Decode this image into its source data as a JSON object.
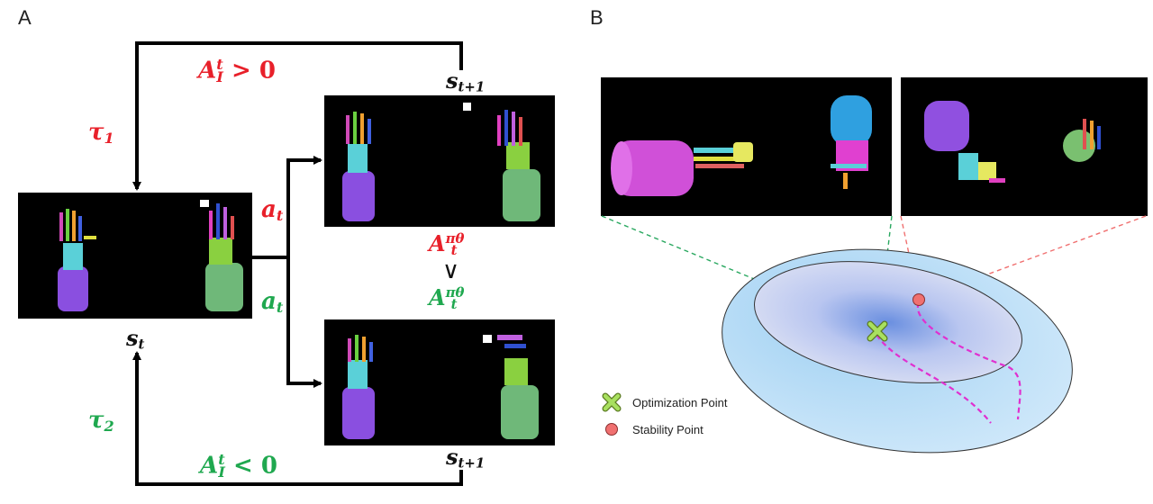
{
  "panels": {
    "a_label": "A",
    "b_label": "B"
  },
  "panel_a": {
    "state_t": {
      "base": "s",
      "sub": "t"
    },
    "state_next_top": {
      "base": "s",
      "sub": "t+1"
    },
    "state_next_bottom": {
      "base": "s",
      "sub": "t+1"
    },
    "action_top": {
      "base": "a",
      "sub": "t"
    },
    "action_bottom": {
      "base": "a",
      "sub": "t"
    },
    "traj_top": {
      "base": "τ",
      "sub": "1"
    },
    "traj_bottom": {
      "base": "τ",
      "sub": "2"
    },
    "adv_top_cond": {
      "base": "A",
      "sup": "t",
      "sub": "I",
      "rel": " > 0"
    },
    "adv_bottom_cond": {
      "base": "A",
      "sup": "t",
      "sub": "I",
      "rel": " < 0"
    },
    "adv_policy_top": {
      "base": "A",
      "sub": "t",
      "sup": "πθ"
    },
    "comparison": "∨",
    "adv_policy_bottom": {
      "base": "A",
      "sub": "t",
      "sup": "πθ"
    },
    "colors": {
      "red": "#e8202a",
      "green": "#1fa84f"
    }
  },
  "panel_b": {
    "legend": [
      {
        "label": "Optimization Point",
        "marker": "x-marker-icon",
        "color": "#a8e05f"
      },
      {
        "label": "Stability Point",
        "marker": "circle-marker-icon",
        "color": "#f07070"
      }
    ]
  }
}
